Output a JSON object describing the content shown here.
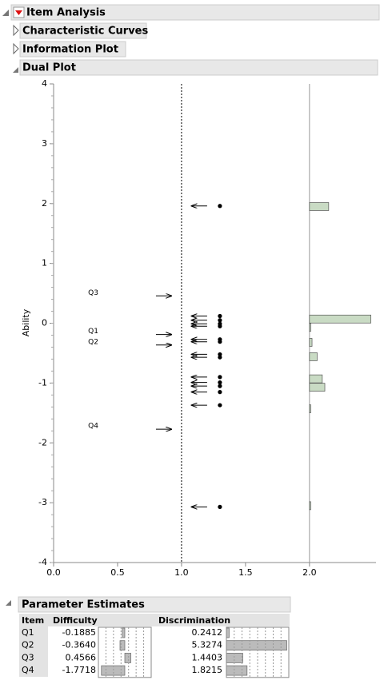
{
  "outline": {
    "title": "Item Analysis",
    "sections": [
      "Characteristic Curves",
      "Information Plot",
      "Dual Plot"
    ]
  },
  "chart_data": {
    "type": "dual",
    "y_label": "Ability",
    "xlim": [
      0,
      2.52
    ],
    "ylim": [
      -4,
      4
    ],
    "xticks": [
      {
        "value": 0,
        "label": "0.0"
      },
      {
        "value": 0.5,
        "label": "0.5"
      },
      {
        "value": 1,
        "label": "1.0"
      },
      {
        "value": 1.5,
        "label": "1.5"
      },
      {
        "value": 2,
        "label": "2.0"
      }
    ],
    "yticks": [
      -4,
      -3,
      -2,
      -1,
      0,
      1,
      2,
      3,
      4
    ],
    "reference_line_x": 1,
    "histogram_base_x": 2,
    "items": {
      "names": [
        "Q3",
        "Q1",
        "Q2",
        "Q4"
      ],
      "values": [
        0.4566,
        -0.1885,
        -0.364,
        -1.7718
      ]
    },
    "persons": {
      "values": [
        1.96,
        0.12,
        0.05,
        -0.01,
        -0.05,
        -0.27,
        -0.31,
        -0.52,
        -0.57,
        -0.9,
        -0.99,
        -1.05,
        -1.15,
        -1.37,
        -3.07
      ]
    },
    "histogram": {
      "color": "#c9dbc4",
      "y": [
        1.95,
        0.07,
        -0.07,
        -0.32,
        -0.56,
        -0.93,
        -1.07,
        -1.43,
        -3.05
      ],
      "values": [
        0.15,
        0.48,
        0.01,
        0.02,
        0.06,
        0.1,
        0.12,
        0.01,
        0.01
      ]
    }
  },
  "table": {
    "title": "Parameter Estimates",
    "columns": [
      "Item",
      "Difficulty",
      "Discrimination"
    ],
    "difficulty_lim": [
      -2,
      2
    ],
    "discrimination_lim": [
      0,
      5.5
    ],
    "rows": [
      [
        "Q1",
        "-0.1885",
        "0.2412"
      ],
      [
        "Q2",
        "-0.3640",
        "5.3274"
      ],
      [
        "Q3",
        "0.4566",
        "1.4403"
      ],
      [
        "Q4",
        "-1.7718",
        "1.8215"
      ]
    ]
  }
}
